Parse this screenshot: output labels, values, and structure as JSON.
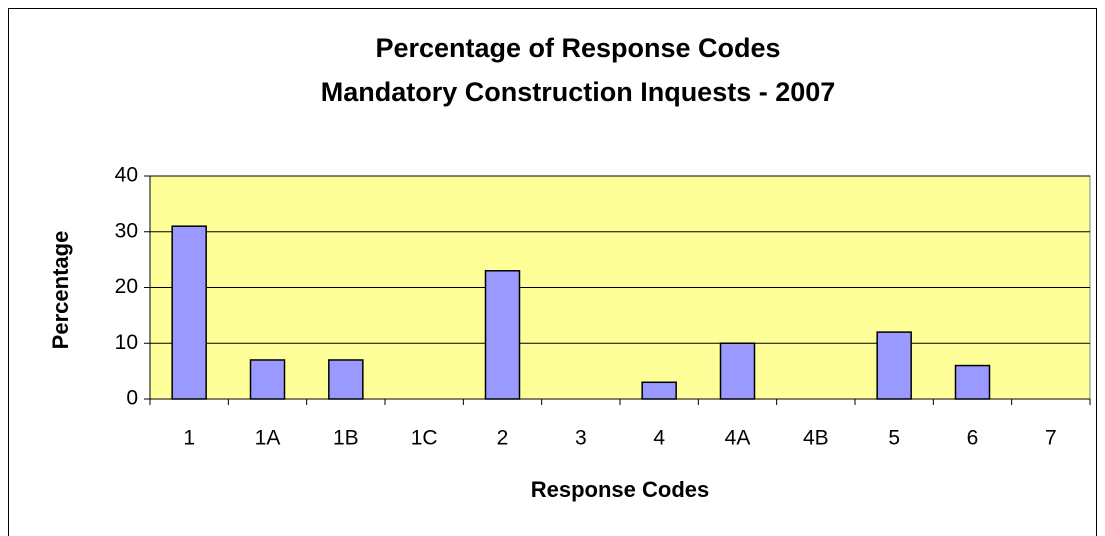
{
  "chart_data": {
    "type": "bar",
    "title": [
      "Percentage of Response Codes",
      "Mandatory Construction Inquests - 2007"
    ],
    "x_label": "Response Codes",
    "y_label": "Percentage",
    "categories": [
      "1",
      "1A",
      "1B",
      "1C",
      "2",
      "3",
      "4",
      "4A",
      "4B",
      "5",
      "6",
      "7"
    ],
    "values": [
      31,
      7,
      7,
      0,
      23,
      0,
      3,
      10,
      0,
      12,
      6,
      0
    ],
    "color": "#9999ff",
    "plot_background": "#ffff99",
    "ylim": [
      0,
      40
    ],
    "yticks": [
      0,
      10,
      20,
      30,
      40
    ],
    "grid": true
  }
}
